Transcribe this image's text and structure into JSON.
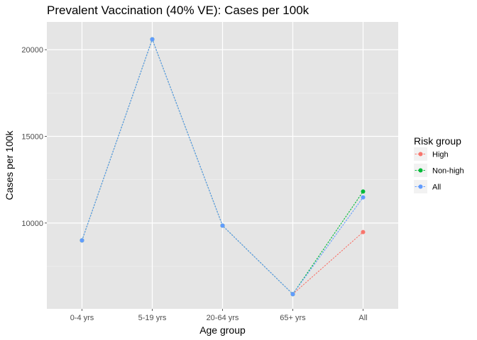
{
  "chart_data": {
    "type": "line",
    "title": "Prevalent Vaccination (40% VE): Cases per 100k",
    "xlabel": "Age group",
    "ylabel": "Cases per 100k",
    "categories": [
      "0-4 yrs",
      "5-19 yrs",
      "20-64 yrs",
      "65+ yrs",
      "All"
    ],
    "ylim": [
      5050,
      21600
    ],
    "yticks": [
      10000,
      15000,
      20000
    ],
    "ytick_labels": [
      "10000",
      "15000",
      "20000"
    ],
    "grid": true,
    "legend": {
      "title": "Risk group",
      "placement": "right"
    },
    "series": [
      {
        "name": "High",
        "color": "#F8766D",
        "values": [
          9000,
          20600,
          9850,
          5900,
          9480
        ]
      },
      {
        "name": "Non-high",
        "color": "#00BA38",
        "values": [
          9000,
          20600,
          9850,
          5900,
          11820
        ]
      },
      {
        "name": "All",
        "color": "#619CFF",
        "values": [
          9000,
          20600,
          9850,
          5900,
          11480
        ]
      }
    ]
  }
}
